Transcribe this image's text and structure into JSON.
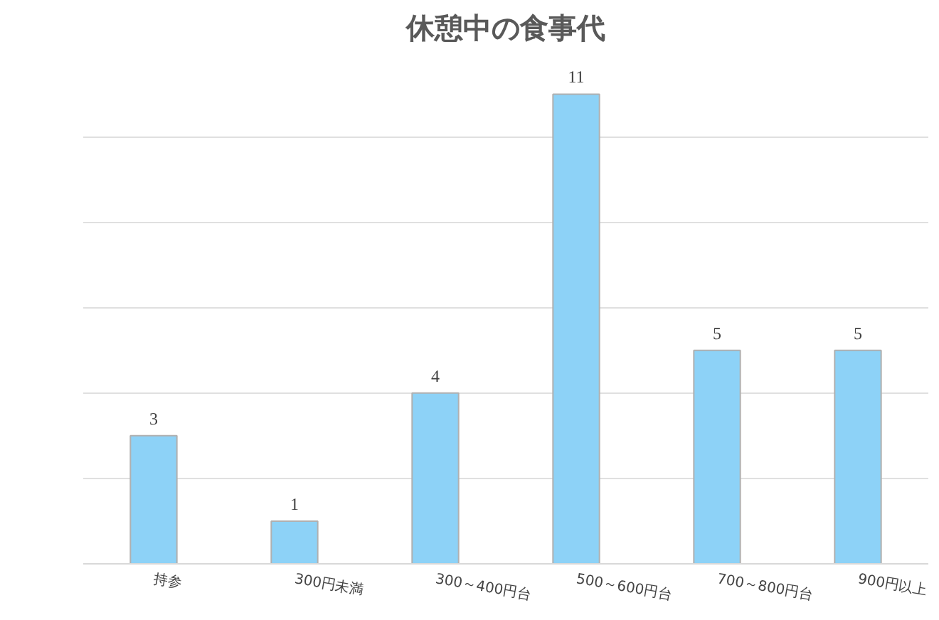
{
  "chart_data": {
    "type": "bar",
    "title": "休憩中の食事代",
    "categories": [
      "持参",
      "300円未満",
      "300～400円台",
      "500～600円台",
      "700～800円台",
      "900円以上"
    ],
    "values": [
      3,
      1,
      4,
      11,
      5,
      5
    ],
    "color": "#8dd2f7",
    "grid": "y",
    "tick_labels": "x",
    "data_labels": true
  }
}
